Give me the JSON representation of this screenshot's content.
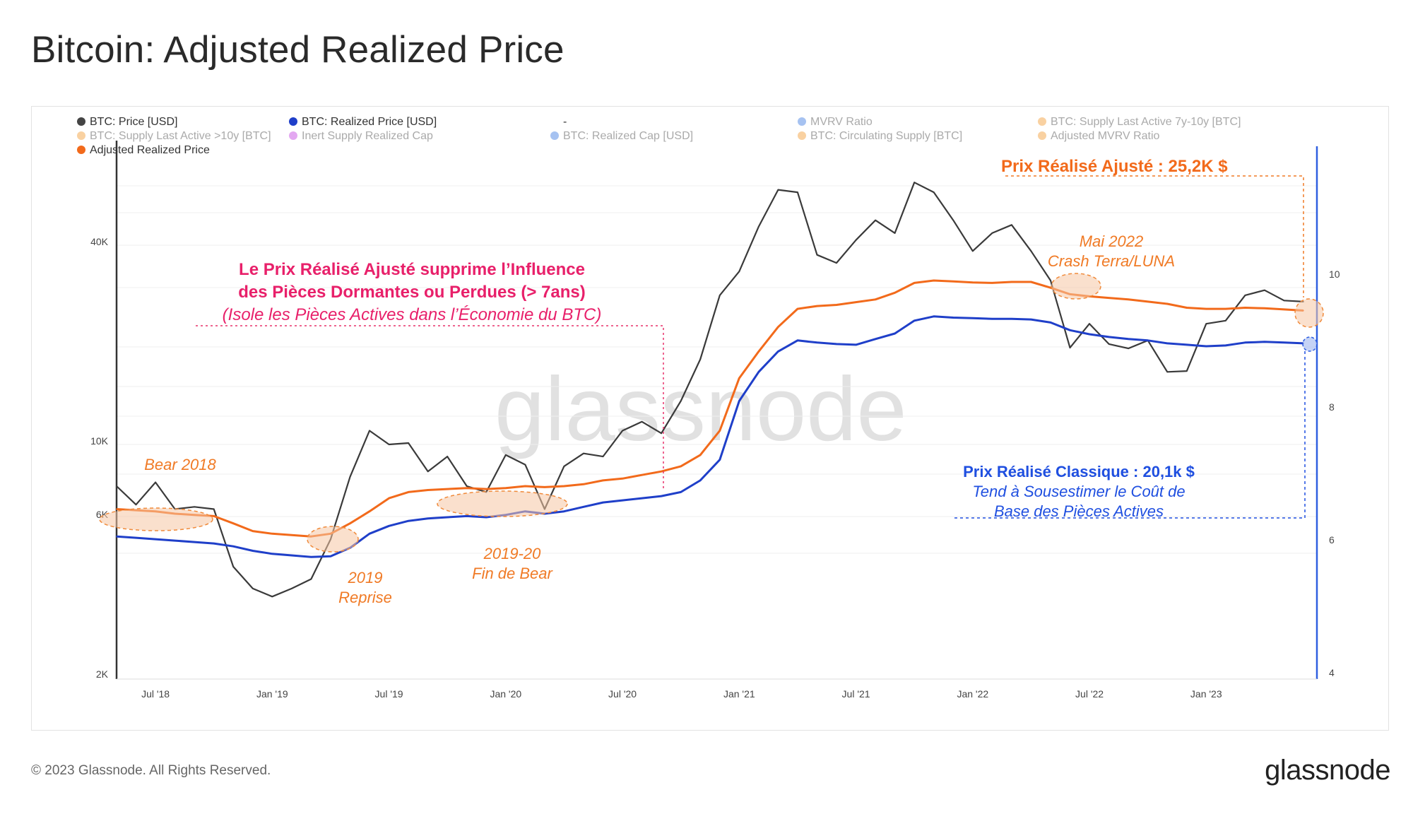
{
  "title": "Bitcoin: Adjusted Realized Price",
  "footer": {
    "copyright": "© 2023 Glassnode. All Rights Reserved.",
    "logo": "glassnode"
  },
  "watermark": "glassnode",
  "legend": [
    {
      "label": "BTC: Price [USD]",
      "color": "#444444",
      "active": true
    },
    {
      "label": "BTC: Realized Price [USD]",
      "color": "#1f3fc9",
      "active": true
    },
    {
      "label": "-",
      "color": "",
      "active": true
    },
    {
      "label": "MVRV Ratio",
      "color": "#3a78e0",
      "active": false
    },
    {
      "label": "BTC: Supply Last Active 7y-10y [BTC]",
      "color": "#f29a2e",
      "active": false
    },
    {
      "label": "BTC: Supply Last Active >10y [BTC]",
      "color": "#f29a2e",
      "active": false
    },
    {
      "label": "Inert Supply Realized Cap",
      "color": "#c23de0",
      "active": false
    },
    {
      "label": "BTC: Realized Cap [USD]",
      "color": "#3a78e0",
      "active": false
    },
    {
      "label": "BTC: Circulating Supply [BTC]",
      "color": "#f29a2e",
      "active": false
    },
    {
      "label": "Adjusted MVRV Ratio",
      "color": "#f29a2e",
      "active": false
    },
    {
      "label": "Adjusted Realized Price",
      "color": "#f26a1b",
      "active": true
    }
  ],
  "annotations": {
    "adjusted_label": "Prix Réalisé Ajusté : 25,2K $",
    "main_line1": "Le Prix Réalisé Ajusté supprime l’Influence",
    "main_line2": "des Pièces Dormantes ou Perdues (> 7ans)",
    "main_line3": "(Isole les Pièces Actives dans l’Économie du BTC)",
    "bear2018": "Bear 2018",
    "reprise_line1": "2019",
    "reprise_line2": "Reprise",
    "finbear_line1": "2019-20",
    "finbear_line2": "Fin de Bear",
    "luna_line1": "Mai 2022",
    "luna_line2": "Crash Terra/LUNA",
    "classic_line1": "Prix Réalisé Classique : 20,1k $",
    "classic_line2": "Tend à Sousestimer le Coût de",
    "classic_line3": "Base des Pièces Actives"
  },
  "chart_data": {
    "type": "line",
    "title": "Bitcoin: Adjusted Realized Price",
    "y_scale": "log",
    "x_ticks": [
      "Jul '18",
      "Jan '19",
      "Jul '19",
      "Jan '20",
      "Jul '20",
      "Jan '21",
      "Jul '21",
      "Jan '22",
      "Jul '22",
      "Jan '23"
    ],
    "y_left_ticks": [
      "2K",
      "6K",
      "10K",
      "40K"
    ],
    "y_right_ticks": [
      "4",
      "6",
      "8",
      "10"
    ],
    "x": [
      "2018-05",
      "2018-06",
      "2018-07",
      "2018-08",
      "2018-09",
      "2018-10",
      "2018-11",
      "2018-12",
      "2019-01",
      "2019-02",
      "2019-03",
      "2019-04",
      "2019-05",
      "2019-06",
      "2019-07",
      "2019-08",
      "2019-09",
      "2019-10",
      "2019-11",
      "2019-12",
      "2020-01",
      "2020-02",
      "2020-03",
      "2020-04",
      "2020-05",
      "2020-06",
      "2020-07",
      "2020-08",
      "2020-09",
      "2020-10",
      "2020-11",
      "2020-12",
      "2021-01",
      "2021-02",
      "2021-03",
      "2021-04",
      "2021-05",
      "2021-06",
      "2021-07",
      "2021-08",
      "2021-09",
      "2021-10",
      "2021-11",
      "2021-12",
      "2022-01",
      "2022-02",
      "2022-03",
      "2022-04",
      "2022-05",
      "2022-06",
      "2022-07",
      "2022-08",
      "2022-09",
      "2022-10",
      "2022-11",
      "2022-12",
      "2023-01",
      "2023-02",
      "2023-03",
      "2023-04",
      "2023-05",
      "2023-06"
    ],
    "series": [
      {
        "name": "BTC: Price [USD]",
        "color": "#3a3a3a",
        "values": [
          7500,
          6600,
          7700,
          6400,
          6500,
          6400,
          4300,
          3700,
          3500,
          3700,
          3950,
          5200,
          8000,
          11000,
          10000,
          10100,
          8300,
          9200,
          7500,
          7200,
          9300,
          8700,
          6400,
          8600,
          9400,
          9200,
          11000,
          11700,
          10800,
          13500,
          18000,
          28000,
          33000,
          45000,
          58000,
          57000,
          37000,
          35000,
          41000,
          47000,
          43000,
          61000,
          57000,
          47000,
          38000,
          43000,
          45500,
          38000,
          31000,
          19500,
          23000,
          20000,
          19400,
          20500,
          16500,
          16600,
          23000,
          23500,
          28000,
          29000,
          27000,
          26800
        ]
      },
      {
        "name": "BTC: Realized Price [USD]",
        "color": "#1f3fc9",
        "values": [
          5300,
          5250,
          5200,
          5150,
          5100,
          5050,
          4950,
          4800,
          4700,
          4650,
          4600,
          4620,
          4900,
          5400,
          5700,
          5900,
          6000,
          6050,
          6100,
          6050,
          6150,
          6300,
          6200,
          6300,
          6500,
          6700,
          6800,
          6900,
          7000,
          7200,
          7800,
          9000,
          13500,
          16500,
          19000,
          20500,
          20200,
          20000,
          19900,
          20700,
          21500,
          23500,
          24200,
          24000,
          23900,
          23800,
          23800,
          23700,
          23200,
          22000,
          21400,
          21000,
          20700,
          20500,
          20100,
          19900,
          19700,
          19800,
          20200,
          20300,
          20200,
          20100
        ]
      },
      {
        "name": "Adjusted Realized Price",
        "color": "#f26a1b",
        "values": [
          6400,
          6350,
          6300,
          6200,
          6150,
          6100,
          5800,
          5500,
          5400,
          5350,
          5300,
          5400,
          5800,
          6300,
          6900,
          7200,
          7300,
          7350,
          7400,
          7350,
          7400,
          7500,
          7450,
          7500,
          7600,
          7800,
          7900,
          8100,
          8300,
          8600,
          9300,
          11000,
          15800,
          19000,
          22500,
          25500,
          26000,
          26200,
          26700,
          27200,
          28500,
          30500,
          31000,
          30800,
          30600,
          30500,
          30700,
          30700,
          29500,
          28200,
          27800,
          27500,
          27200,
          26800,
          26400,
          25700,
          25500,
          25500,
          25700,
          25600,
          25400,
          25200
        ]
      }
    ]
  }
}
